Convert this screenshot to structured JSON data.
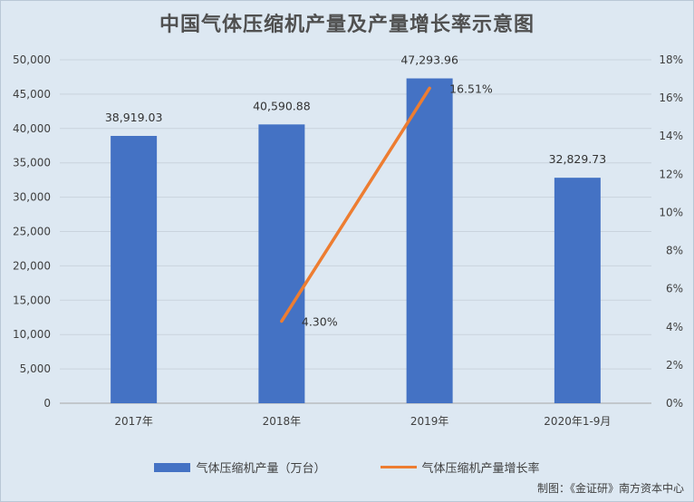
{
  "title": "中国气体压缩机产量及产量增长率示意图",
  "source": "制图：《金证研》南方资本中心",
  "colors": {
    "bar": "#4472c4",
    "line": "#ed7d31",
    "grid": "#c9d3dd",
    "background": "#dde8f2"
  },
  "chart_data": {
    "type": "bar",
    "categories": [
      "2017年",
      "2018年",
      "2019年",
      "2020年1-9月"
    ],
    "series": [
      {
        "name": "气体压缩机产量（万台）",
        "type": "bar",
        "axis": "left",
        "values": [
          38919.03,
          40590.88,
          47293.96,
          32829.73
        ],
        "labels": [
          "38,919.03",
          "40,590.88",
          "47,293.96",
          "32,829.73"
        ]
      },
      {
        "name": "气体压缩机产量增长率",
        "type": "line",
        "axis": "right",
        "values": [
          null,
          4.3,
          16.51,
          null
        ],
        "labels": [
          "",
          "4.30%",
          "16.51%",
          ""
        ]
      }
    ],
    "y_left": {
      "min": 0,
      "max": 50000,
      "ticks": [
        "0",
        "5,000",
        "10,000",
        "15,000",
        "20,000",
        "25,000",
        "30,000",
        "35,000",
        "40,000",
        "45,000",
        "50,000"
      ]
    },
    "y_right": {
      "min": 0,
      "max": 18,
      "ticks": [
        "0%",
        "2%",
        "4%",
        "6%",
        "8%",
        "10%",
        "12%",
        "14%",
        "16%",
        "18%"
      ]
    },
    "grid": true,
    "legend_position": "bottom"
  }
}
